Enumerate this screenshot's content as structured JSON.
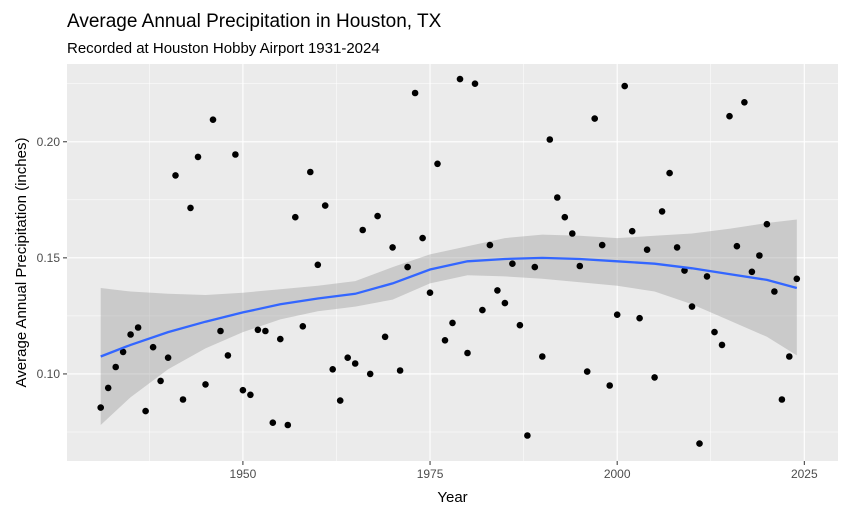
{
  "chart_data": {
    "type": "scatter",
    "title": "Average Annual Precipitation in Houston, TX",
    "subtitle": "Recorded at Houston Hobby Airport 1931-2024",
    "xlabel": "Year",
    "ylabel": "Average Annual Precipitation (inches)",
    "xlim": [
      1926.5,
      2029.5
    ],
    "ylim": [
      0.0625,
      0.2335
    ],
    "x_ticks": [
      1950,
      1975,
      2000,
      2025
    ],
    "x_tick_labels": [
      "1950",
      "1975",
      "2000",
      "2025"
    ],
    "y_ticks": [
      0.1,
      0.15,
      0.2
    ],
    "y_tick_labels": [
      "0.10",
      "0.15",
      "0.20"
    ],
    "grid": true,
    "legend": "none",
    "colors": {
      "panel_background": "#ebebeb",
      "grid_major": "#ffffff",
      "points": "#000000",
      "smooth_line": "#3366ff",
      "confidence_band": "#999999"
    },
    "points": {
      "x": [
        1931,
        1932,
        1933,
        1934,
        1935,
        1936,
        1937,
        1938,
        1939,
        1940,
        1941,
        1942,
        1943,
        1944,
        1945,
        1946,
        1947,
        1948,
        1949,
        1950,
        1951,
        1952,
        1953,
        1954,
        1955,
        1956,
        1957,
        1958,
        1959,
        1960,
        1961,
        1962,
        1963,
        1964,
        1965,
        1966,
        1967,
        1968,
        1969,
        1970,
        1971,
        1972,
        1973,
        1974,
        1975,
        1976,
        1977,
        1978,
        1979,
        1980,
        1981,
        1982,
        1983,
        1984,
        1985,
        1986,
        1987,
        1988,
        1989,
        1990,
        1991,
        1992,
        1993,
        1994,
        1995,
        1996,
        1997,
        1998,
        1999,
        2000,
        2001,
        2002,
        2003,
        2004,
        2005,
        2006,
        2007,
        2008,
        2009,
        2010,
        2011,
        2012,
        2013,
        2014,
        2015,
        2016,
        2017,
        2018,
        2019,
        2020,
        2021,
        2022,
        2023,
        2024
      ],
      "y": [
        0.0855,
        0.094,
        0.103,
        0.1095,
        0.117,
        0.12,
        0.084,
        0.1115,
        0.097,
        0.107,
        0.1855,
        0.089,
        0.1715,
        0.1935,
        0.0955,
        0.2095,
        0.1185,
        0.108,
        0.1945,
        0.093,
        0.091,
        0.119,
        0.1185,
        0.079,
        0.115,
        0.078,
        0.1675,
        0.1205,
        0.187,
        0.147,
        0.1725,
        0.102,
        0.0885,
        0.107,
        0.1045,
        0.162,
        0.1,
        0.168,
        0.116,
        0.1545,
        0.1015,
        0.146,
        0.221,
        0.1585,
        0.135,
        0.1905,
        0.1145,
        0.122,
        0.227,
        0.109,
        0.225,
        0.1275,
        0.1555,
        0.136,
        0.1305,
        0.1475,
        0.121,
        0.0735,
        0.146,
        0.1075,
        0.201,
        0.176,
        0.1675,
        0.1605,
        0.1465,
        0.101,
        0.21,
        0.1555,
        0.095,
        0.1255,
        0.224,
        0.1615,
        0.124,
        0.1535,
        0.0985,
        0.17,
        0.1865,
        0.1545,
        0.1445,
        0.129,
        0.07,
        0.142,
        0.118,
        0.1125,
        0.211,
        0.155,
        0.217,
        0.144,
        0.151,
        0.1645,
        0.1355,
        0.089,
        0.1075,
        0.141
      ]
    },
    "smooth": {
      "x": [
        1931,
        1935,
        1940,
        1945,
        1950,
        1955,
        1960,
        1965,
        1970,
        1975,
        1980,
        1985,
        1990,
        1995,
        2000,
        2005,
        2010,
        2015,
        2020,
        2024
      ],
      "y": [
        0.1075,
        0.1125,
        0.118,
        0.1225,
        0.1265,
        0.13,
        0.1325,
        0.1345,
        0.139,
        0.145,
        0.1485,
        0.1495,
        0.15,
        0.1495,
        0.1485,
        0.1475,
        0.1455,
        0.143,
        0.1405,
        0.137
      ],
      "lower": [
        0.078,
        0.09,
        0.102,
        0.111,
        0.118,
        0.1235,
        0.127,
        0.129,
        0.132,
        0.139,
        0.1425,
        0.142,
        0.141,
        0.1395,
        0.138,
        0.1355,
        0.13,
        0.123,
        0.116,
        0.108
      ],
      "upper": [
        0.137,
        0.1355,
        0.1345,
        0.134,
        0.135,
        0.1365,
        0.138,
        0.14,
        0.146,
        0.1515,
        0.155,
        0.1585,
        0.16,
        0.1595,
        0.1585,
        0.1595,
        0.1605,
        0.1625,
        0.165,
        0.1665
      ]
    }
  }
}
